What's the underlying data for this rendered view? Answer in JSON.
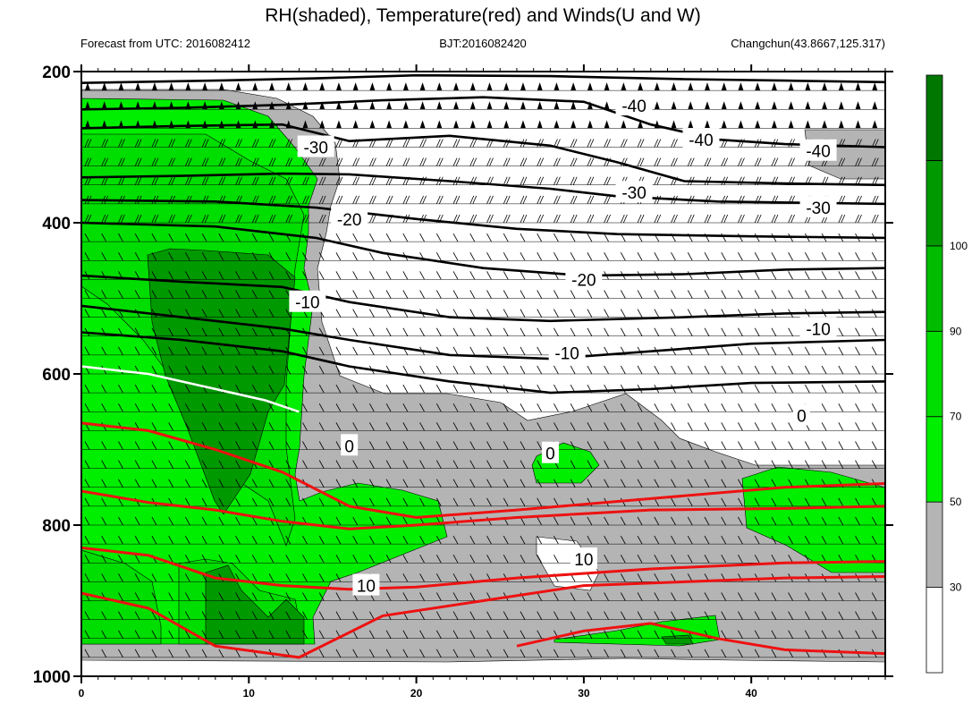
{
  "header": {
    "title": "RH(shaded), Temperature(red) and Winds(U and W)",
    "left": "Forecast from UTC: 2016082412",
    "center": "BJT:2016082420",
    "right": "Changchun(43.8667,125.317)"
  },
  "chart_data": {
    "type": "contour",
    "xlim": [
      0,
      48
    ],
    "ylim": [
      1000,
      200
    ],
    "x_ticks": [
      0,
      10,
      20,
      30,
      40
    ],
    "y_ticks": [
      200,
      400,
      600,
      800,
      1000
    ],
    "pressure_levels": [
      225,
      250,
      275,
      300,
      325,
      350,
      375,
      400,
      425,
      450,
      475,
      500,
      525,
      550,
      575,
      600,
      625,
      650,
      675,
      700,
      725,
      750,
      775,
      800,
      825,
      850,
      875,
      900,
      925,
      950,
      975
    ],
    "rh_colorbar": {
      "labels": [
        30,
        50,
        70,
        90,
        100
      ],
      "colors": [
        "#ffffff",
        "#b4b4b4",
        "#00ee00",
        "#00dd00",
        "#00bb00",
        "#009900",
        "#007700"
      ]
    },
    "temperature_contours": [
      {
        "value": -40,
        "x": [
          0,
          8,
          14,
          20,
          28,
          36,
          42,
          48
        ],
        "y": [
          215,
          212,
          209,
          205,
          206,
          210,
          212,
          214
        ]
      },
      {
        "value": -40,
        "x": [
          0,
          6,
          12,
          18,
          24,
          30,
          34,
          38,
          42,
          48
        ],
        "y": [
          250,
          248,
          244,
          238,
          234,
          240,
          270,
          290,
          296,
          300
        ]
      },
      {
        "value": -30,
        "x": [
          0,
          6,
          12,
          16,
          22,
          28,
          32,
          36,
          42,
          48
        ],
        "y": [
          275,
          272,
          270,
          292,
          285,
          298,
          320,
          345,
          348,
          350
        ]
      },
      {
        "value": -30,
        "x": [
          0,
          6,
          12,
          16,
          22,
          28,
          32,
          38,
          48
        ],
        "y": [
          340,
          338,
          335,
          336,
          345,
          355,
          365,
          372,
          375
        ]
      },
      {
        "value": -20,
        "x": [
          0,
          8,
          14,
          20,
          26,
          32,
          40,
          48
        ],
        "y": [
          370,
          372,
          380,
          395,
          408,
          415,
          418,
          420
        ]
      },
      {
        "value": -20,
        "x": [
          0,
          8,
          14,
          18,
          24,
          30,
          36,
          42,
          48
        ],
        "y": [
          400,
          405,
          420,
          440,
          460,
          470,
          468,
          462,
          460
        ]
      },
      {
        "value": -10,
        "x": [
          0,
          6,
          12,
          16,
          22,
          28,
          36,
          42,
          48
        ],
        "y": [
          470,
          478,
          485,
          505,
          525,
          530,
          525,
          520,
          518
        ]
      },
      {
        "value": -10,
        "x": [
          0,
          6,
          12,
          16,
          22,
          28,
          34,
          40,
          48
        ],
        "y": [
          510,
          525,
          540,
          555,
          575,
          580,
          570,
          560,
          555
        ]
      },
      {
        "value": -10,
        "x": [
          0,
          6,
          12,
          16,
          22,
          28,
          34,
          40,
          48
        ],
        "y": [
          545,
          555,
          570,
          590,
          610,
          625,
          620,
          612,
          610
        ]
      }
    ],
    "zero_isotherm": {
      "x": [
        0,
        4,
        8,
        11,
        13
      ],
      "y": [
        590,
        600,
        620,
        635,
        650
      ]
    },
    "red_isotherms": [
      {
        "x": [
          0,
          4,
          8,
          12,
          16,
          20,
          26,
          34,
          42,
          48
        ],
        "y": [
          665,
          675,
          700,
          730,
          775,
          790,
          780,
          765,
          750,
          745
        ]
      },
      {
        "x": [
          0,
          4,
          8,
          12,
          16,
          20,
          26,
          34,
          42,
          48
        ],
        "y": [
          755,
          770,
          780,
          795,
          805,
          800,
          790,
          780,
          778,
          775
        ]
      },
      {
        "x": [
          0,
          4,
          8,
          12,
          16,
          20,
          26,
          34,
          42,
          48
        ],
        "y": [
          830,
          840,
          870,
          880,
          885,
          882,
          870,
          858,
          850,
          848
        ]
      },
      {
        "x": [
          0,
          4,
          8,
          13,
          18,
          24,
          30,
          36,
          42,
          48
        ],
        "y": [
          890,
          910,
          960,
          975,
          920,
          900,
          880,
          875,
          870,
          868
        ]
      },
      {
        "x": [
          26,
          30,
          34,
          38,
          42,
          48
        ],
        "y": [
          960,
          940,
          930,
          950,
          965,
          970
        ]
      }
    ],
    "contour_labels": [
      {
        "text": "-40",
        "x": 33,
        "y": 245
      },
      {
        "text": "-40",
        "x": 37,
        "y": 290
      },
      {
        "text": "-40",
        "x": 44,
        "y": 305
      },
      {
        "text": "-30",
        "x": 14,
        "y": 300
      },
      {
        "text": "-30",
        "x": 33,
        "y": 360
      },
      {
        "text": "-30",
        "x": 44,
        "y": 380
      },
      {
        "text": "-20",
        "x": 16,
        "y": 395
      },
      {
        "text": "-20",
        "x": 30,
        "y": 475
      },
      {
        "text": "-10",
        "x": 13.5,
        "y": 505
      },
      {
        "text": "-10",
        "x": 29,
        "y": 572
      },
      {
        "text": "-10",
        "x": 44,
        "y": 540
      },
      {
        "text": "0",
        "x": 16,
        "y": 695
      },
      {
        "text": "0",
        "x": 28,
        "y": 705
      },
      {
        "text": "0",
        "x": 43,
        "y": 655
      },
      {
        "text": "10",
        "x": 17,
        "y": 880
      },
      {
        "text": "10",
        "x": 30,
        "y": 845
      }
    ]
  }
}
